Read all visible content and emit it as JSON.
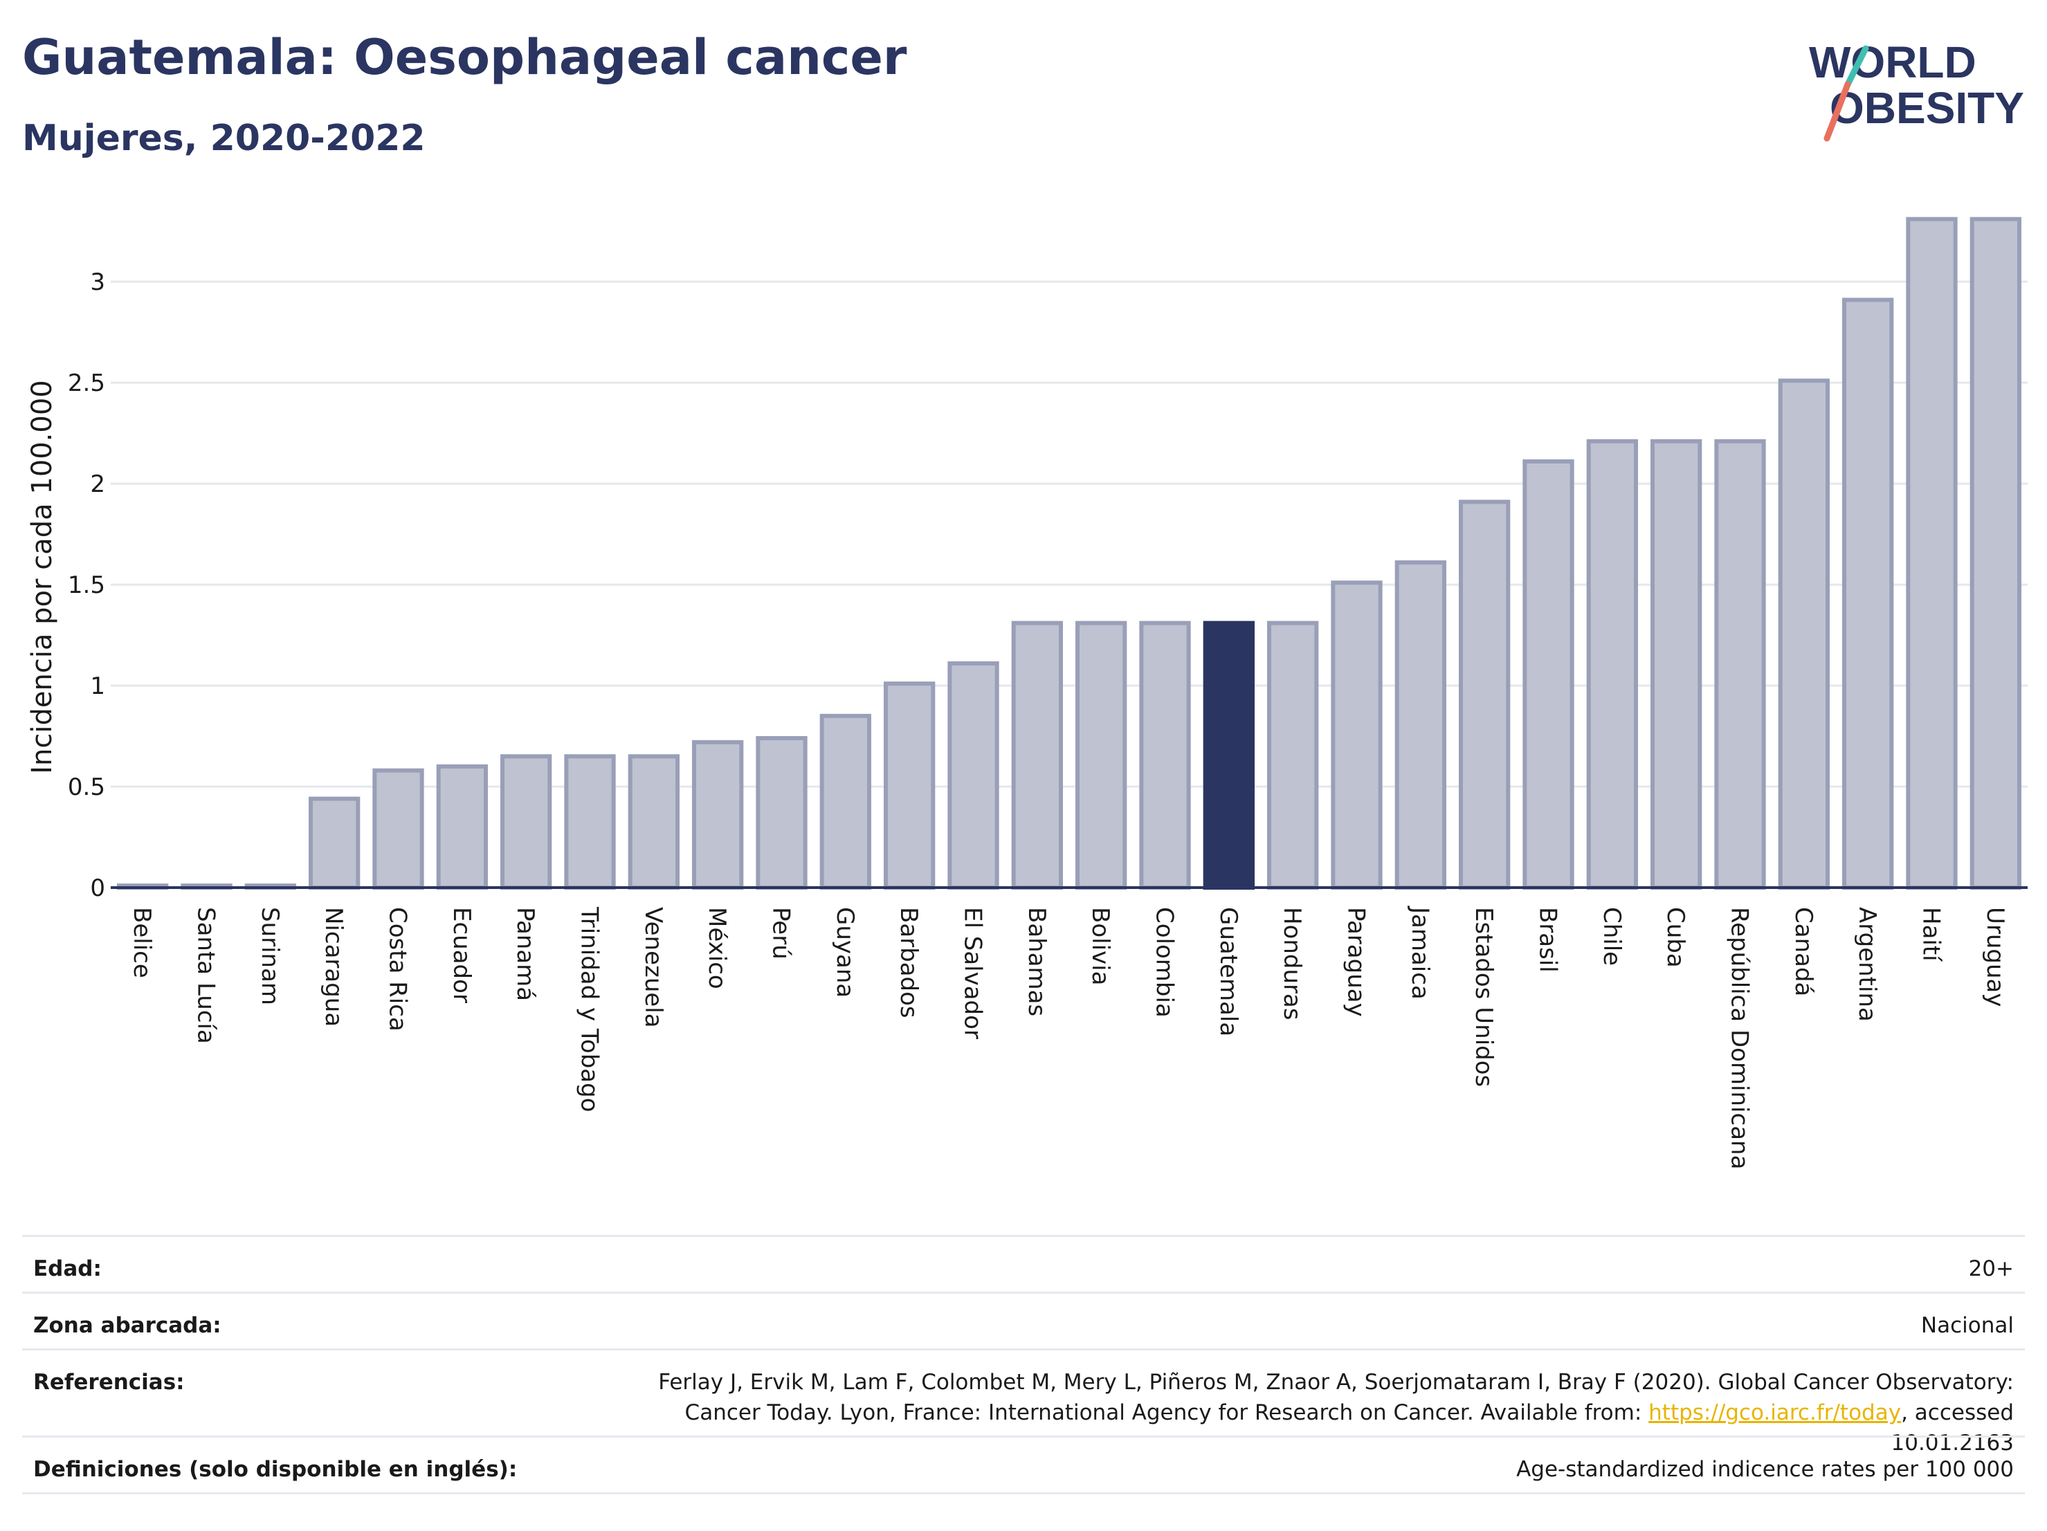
{
  "header": {
    "title": "Guatemala: Oesophageal cancer",
    "subtitle": "Mujeres, 2020-2022"
  },
  "logo": {
    "line1": "WORLD",
    "line2": "OBESITY"
  },
  "colors": {
    "bar": "#bfc2d0",
    "bar_border": "#9a9fb8",
    "highlight": "#2b3561",
    "grid": "#e6e7ec",
    "axis": "#2b3561"
  },
  "chart_data": {
    "type": "bar",
    "ylabel": "Incidencia por cada 100.000",
    "ylim": [
      0,
      3.35
    ],
    "yticks": [
      0,
      0.5,
      1,
      1.5,
      2,
      2.5,
      3
    ],
    "ytick_labels": [
      "0",
      "0.5",
      "1",
      "1.5",
      "2",
      "2.5",
      "3"
    ],
    "highlight": "Guatemala",
    "categories": [
      "Belice",
      "Santa Lucía",
      "Surinam",
      "Nicaragua",
      "Costa Rica",
      "Ecuador",
      "Panamá",
      "Trinidad y Tobago",
      "Venezuela",
      "México",
      "Perú",
      "Guyana",
      "Barbados",
      "El Salvador",
      "Bahamas",
      "Bolivia",
      "Colombia",
      "Guatemala",
      "Honduras",
      "Paraguay",
      "Jamaica",
      "Estados Unidos",
      "Brasil",
      "Chile",
      "Cuba",
      "República Dominicana",
      "Canadá",
      "Argentina",
      "Haití",
      "Uruguay"
    ],
    "values": [
      0.01,
      0.01,
      0.01,
      0.44,
      0.58,
      0.6,
      0.65,
      0.65,
      0.65,
      0.72,
      0.74,
      0.85,
      1.01,
      1.11,
      1.31,
      1.31,
      1.31,
      1.31,
      1.31,
      1.51,
      1.61,
      1.91,
      2.11,
      2.21,
      2.21,
      2.21,
      2.51,
      2.91,
      3.31,
      3.31
    ]
  },
  "meta": {
    "edad_label": "Edad:",
    "edad_value": "20+",
    "zona_label": "Zona abarcada:",
    "zona_value": "Nacional",
    "ref_label": "Referencias:",
    "ref_text_1": "Ferlay J, Ervik M, Lam F, Colombet M, Mery L, Piñeros M, Znaor A, Soerjomataram I, Bray F (2020). Global Cancer Observatory: Cancer Today. Lyon, France: International Agency for Research on Cancer. Available from: ",
    "ref_link": "https://gco.iarc.fr/today",
    "ref_text_2": ", accessed 10.01.2163",
    "def_label": "Definiciones (solo disponible en inglés):",
    "def_value": "Age-standardized indicence rates per 100 000"
  }
}
